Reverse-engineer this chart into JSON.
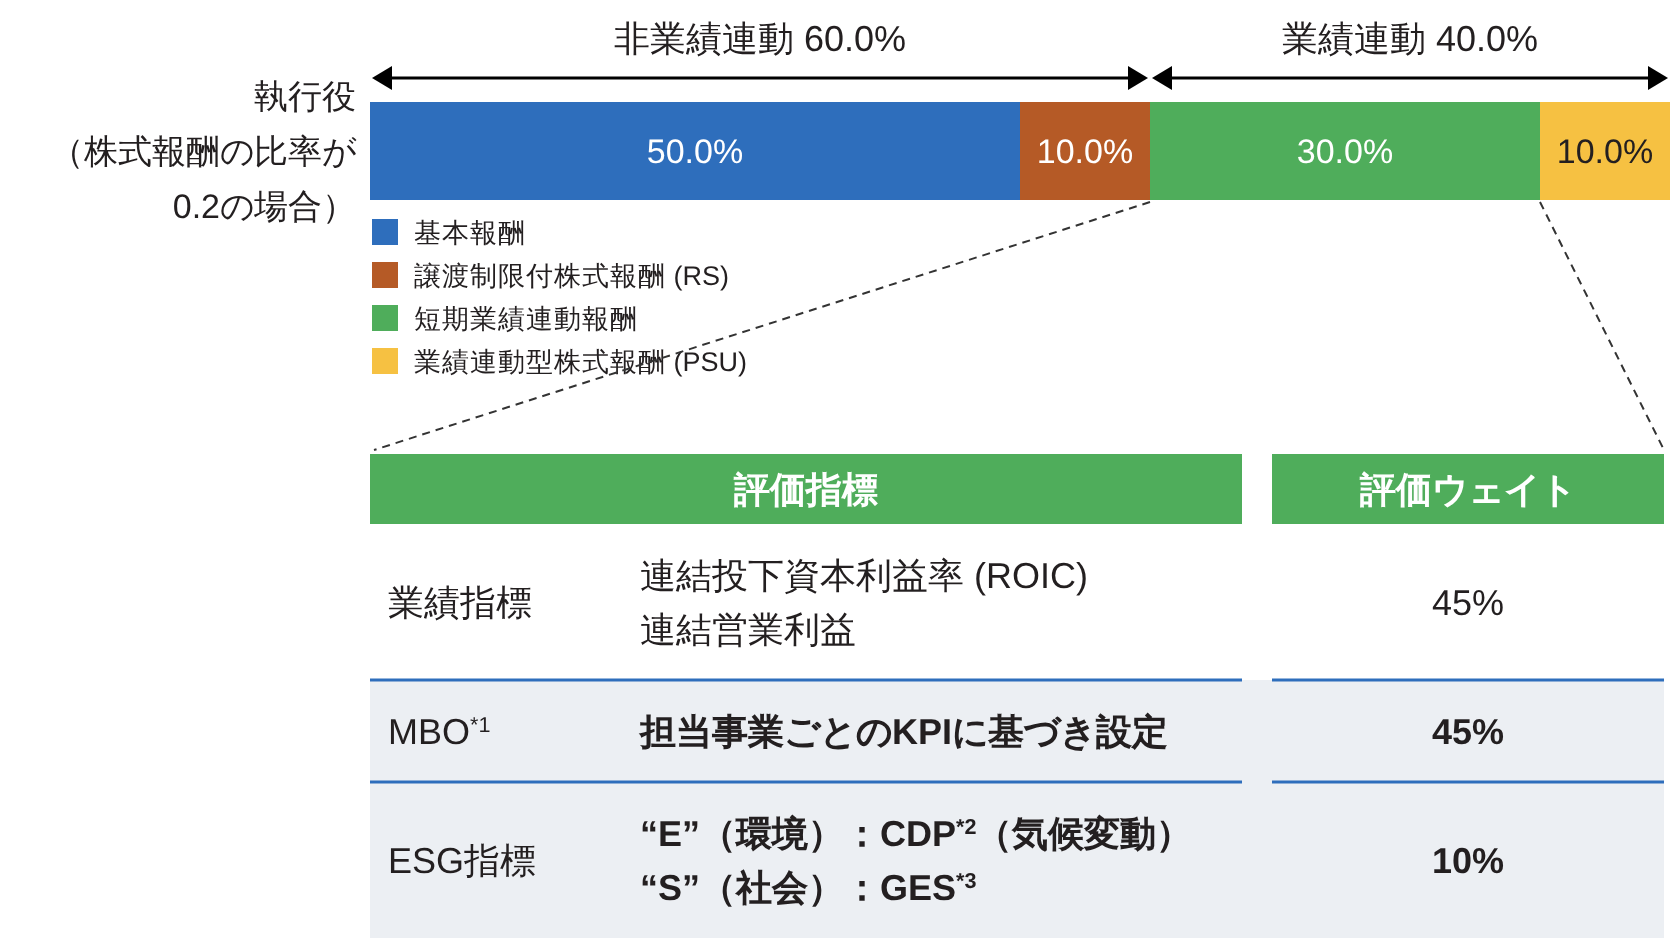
{
  "chart_data": [
    {
      "type": "bar",
      "orientation": "horizontal",
      "stacked": true,
      "categories": [
        "執行役（株式報酬の比率が0.2の場合）"
      ],
      "series": [
        {
          "name": "基本報酬",
          "color": "#2e6ebc",
          "values": [
            50.0
          ],
          "value_labels": [
            "50.0%"
          ]
        },
        {
          "name": "譲渡制限付株式報酬 (RS)",
          "color": "#b55a26",
          "values": [
            10.0
          ],
          "value_labels": [
            "10.0%"
          ]
        },
        {
          "name": "短期業績連動報酬",
          "color": "#4fad5b",
          "values": [
            30.0
          ],
          "value_labels": [
            "30.0%"
          ]
        },
        {
          "name": "業績連動型株式報酬 (PSU)",
          "color": "#f6c142",
          "values": [
            10.0
          ],
          "value_labels": [
            "10.0%"
          ]
        }
      ],
      "xlim": [
        0,
        100
      ],
      "tick_labels": "y",
      "legend": "bottom left",
      "annotations": [
        "非業績連動 60.0%",
        "業績連動 40.0%"
      ]
    },
    {
      "type": "other",
      "annotations": [
        "評価指標",
        "評価ウェイト",
        "業績指標",
        "連結投下資本利益率 (ROIC)\n連結営業利益",
        "45%",
        "MBO$^{*1}$",
        "担当事業ごとのKPIに基づき設定",
        "45%",
        "ESG指標",
        "“E”（環境）：CDP$^{*2}$（気候変動）\n“S”（社会）：GES$^{*3}$",
        "10%"
      ]
    }
  ]
}
